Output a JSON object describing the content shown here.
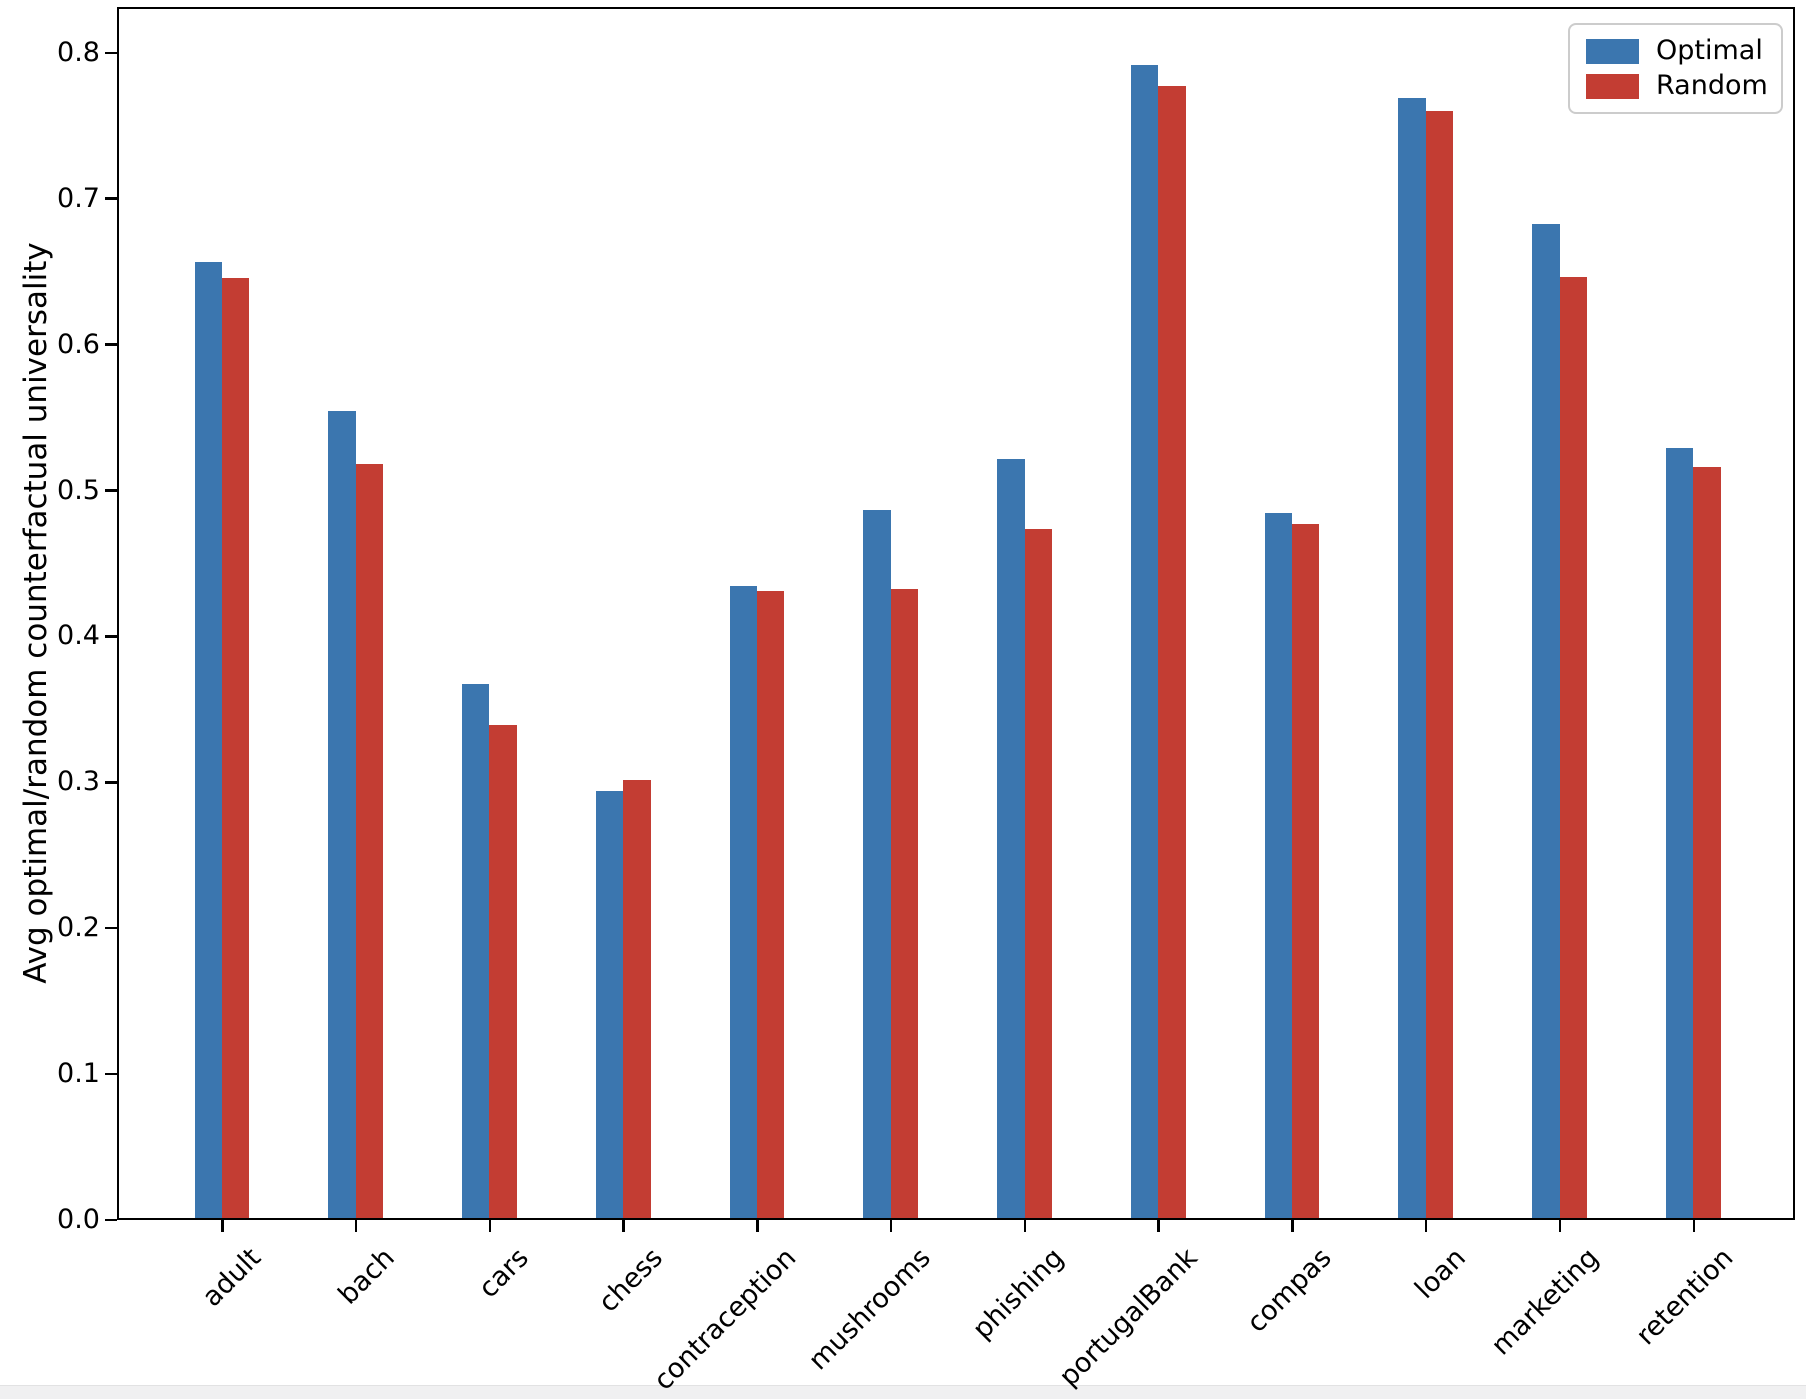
{
  "chart_data": {
    "type": "bar",
    "title": "",
    "xlabel": "",
    "ylabel": "Avg optimal/random counterfactual universality",
    "categories": [
      "adult",
      "bach",
      "cars",
      "chess",
      "contraception",
      "mushrooms",
      "phishing",
      "portugalBank",
      "compas",
      "loan",
      "marketing",
      "retention"
    ],
    "series": [
      {
        "name": "Optimal",
        "color": "#3b76af",
        "values": [
          0.655,
          0.553,
          0.366,
          0.293,
          0.433,
          0.485,
          0.52,
          0.79,
          0.483,
          0.768,
          0.681,
          0.528
        ]
      },
      {
        "name": "Random",
        "color": "#c33d33",
        "values": [
          0.644,
          0.517,
          0.338,
          0.3,
          0.43,
          0.431,
          0.472,
          0.776,
          0.476,
          0.759,
          0.645,
          0.515
        ]
      }
    ],
    "ylim": [
      0,
      0.8314
    ],
    "yticks": [
      0.0,
      0.1,
      0.2,
      0.3,
      0.4,
      0.5,
      0.6,
      0.7,
      0.8
    ],
    "ytick_labels": [
      "0.0",
      "0.1",
      "0.2",
      "0.3",
      "0.4",
      "0.5",
      "0.6",
      "0.7",
      "0.8"
    ],
    "legend": {
      "position": "upper right",
      "labels": [
        "Optimal",
        "Random"
      ]
    },
    "grid": false,
    "group_mode": "grouped"
  }
}
